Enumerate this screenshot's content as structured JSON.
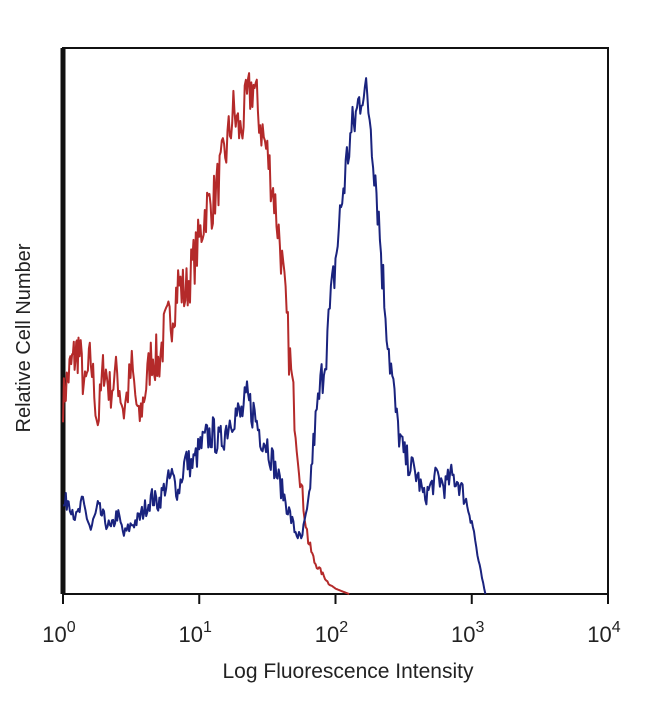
{
  "chart_data": {
    "type": "line",
    "title": "",
    "xlabel": "Log Fluorescence Intensity",
    "ylabel": "Relative Cell Number",
    "x_scale": "log",
    "xlim": [
      1,
      10000
    ],
    "ylim": [
      0,
      100
    ],
    "y_ticks_shown": false,
    "grid": false,
    "legend": "none",
    "x_ticks": [
      {
        "value": 1,
        "base": "10",
        "exp": "0"
      },
      {
        "value": 10,
        "base": "10",
        "exp": "1"
      },
      {
        "value": 100,
        "base": "10",
        "exp": "2"
      },
      {
        "value": 1000,
        "base": "10",
        "exp": "3"
      },
      {
        "value": 10000,
        "base": "10",
        "exp": "4"
      }
    ],
    "series": [
      {
        "color": "#b42a2a",
        "x": [
          1,
          1.1,
          1.2,
          1.3,
          1.45,
          1.6,
          1.8,
          2,
          2.2,
          2.5,
          2.8,
          3.2,
          3.6,
          4,
          4.5,
          5,
          5.6,
          6.3,
          7,
          7.9,
          8.9,
          10,
          11.2,
          12.6,
          14.1,
          15.8,
          17.8,
          20,
          22.4,
          25,
          28,
          31.6,
          35.5,
          39.8,
          44.7,
          50,
          56,
          63,
          70,
          79,
          89,
          100,
          112,
          126
        ],
        "y": [
          36,
          41,
          44,
          46,
          38,
          44,
          32,
          43,
          38,
          41,
          34,
          42,
          32,
          38,
          45,
          43,
          49,
          52,
          58,
          56,
          61,
          66,
          72,
          73,
          78,
          83,
          90,
          86,
          92,
          95,
          88,
          82,
          74,
          64,
          48,
          34,
          20,
          10,
          6,
          4,
          2,
          1,
          0.5,
          0
        ]
      },
      {
        "color": "#1a237e",
        "x": [
          1,
          1.1,
          1.25,
          1.4,
          1.6,
          1.8,
          2,
          2.25,
          2.5,
          2.8,
          3.2,
          3.6,
          4,
          4.5,
          5,
          5.6,
          6.3,
          7,
          7.9,
          8.9,
          10,
          11.2,
          12.6,
          14.1,
          15.8,
          17.8,
          20,
          22.4,
          25,
          28,
          31.6,
          35.5,
          39.8,
          44.7,
          50,
          56,
          63,
          70,
          79,
          89,
          100,
          112,
          126,
          141,
          158,
          178,
          200,
          224,
          251,
          282,
          316,
          355,
          398,
          447,
          501,
          562,
          631,
          708,
          794,
          891,
          1000,
          1122,
          1259
        ],
        "y": [
          16,
          18,
          14,
          17,
          12,
          16,
          14,
          12,
          15,
          11,
          13,
          14,
          16,
          18,
          17,
          20,
          22,
          19,
          25,
          24,
          27,
          29,
          30,
          28,
          31,
          34,
          33,
          36,
          34,
          30,
          28,
          24,
          20,
          16,
          12,
          10,
          16,
          30,
          40,
          50,
          62,
          74,
          84,
          89,
          95,
          90,
          76,
          58,
          44,
          32,
          26,
          24,
          22,
          18,
          20,
          22,
          20,
          22,
          21,
          18,
          14,
          6,
          0
        ]
      }
    ]
  }
}
